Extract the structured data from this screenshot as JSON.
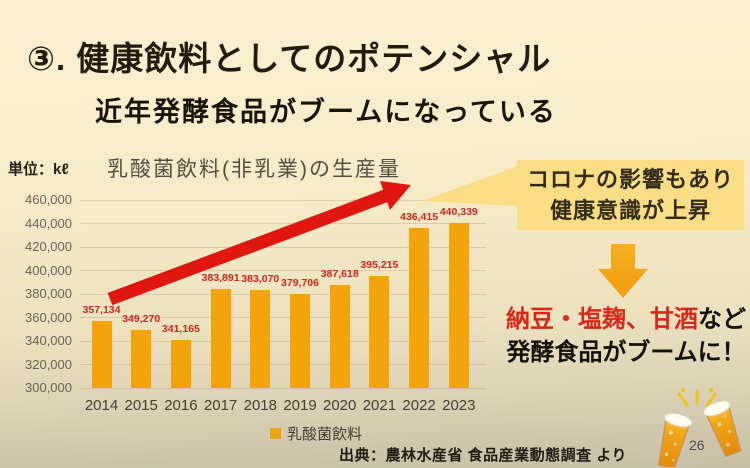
{
  "slide": {
    "title": "③. 健康飲料としてのポテンシャル",
    "subtitle": "近年発酵食品がブームになっている",
    "unit_label": "単位：kℓ",
    "source": "出典：農林水産省 食品産業動態調査 より",
    "page_number": "26"
  },
  "chart_data": {
    "type": "bar",
    "title": "乳酸菌飲料(非乳業)の生産量",
    "unit": "kℓ",
    "categories": [
      "2014",
      "2015",
      "2016",
      "2017",
      "2018",
      "2019",
      "2020",
      "2021",
      "2022",
      "2023"
    ],
    "values": [
      357134,
      349270,
      341165,
      383891,
      383070,
      379706,
      387618,
      395215,
      436415,
      440339
    ],
    "value_labels": [
      "357,134",
      "349,270",
      "341,165",
      "383,891",
      "383,070",
      "379,706",
      "387,618",
      "395,215",
      "436,415",
      "440,339"
    ],
    "series_name": "乳酸菌飲料",
    "xlabel": "",
    "ylabel": "単位：kℓ",
    "ylim": [
      300000,
      460000
    ],
    "ytick_step": 20000,
    "ytick_labels": [
      "300,000",
      "320,000",
      "340,000",
      "360,000",
      "380,000",
      "400,000",
      "420,000",
      "440,000",
      "460,000"
    ],
    "grid": true,
    "legend": {
      "label": "乳酸菌飲料",
      "position": "bottom"
    },
    "bar_color": "#F2A40A",
    "value_label_color": "#C9271D"
  },
  "callout": {
    "line1": "コロナの影響もあり",
    "line2": "健康意識が上昇"
  },
  "conclusion": {
    "highlight": "納豆・塩麹、甘酒",
    "suffix": "など",
    "line2": "発酵食品がブームに！"
  },
  "colors": {
    "background_top": "#FAEFCE",
    "background_bottom": "#C8BFA8",
    "bar": "#F2A40A",
    "trend_arrow": "#DF1710",
    "callout_bg": "#FBDD86",
    "down_arrow": "#F2A418",
    "highlight_text": "#D7281A",
    "body_text": "#16100A"
  }
}
